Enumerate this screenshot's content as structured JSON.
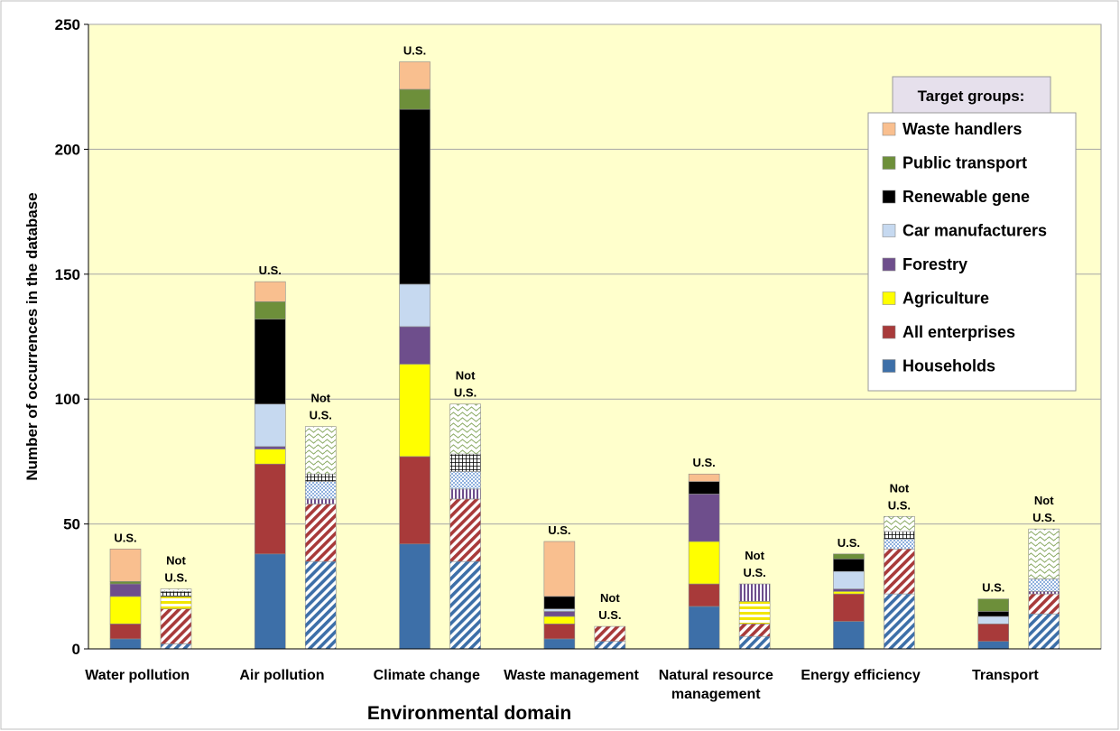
{
  "chart_data": {
    "type": "bar",
    "stacked": true,
    "xlabel": "Environmental domain",
    "ylabel": "Number of occurrences in the database",
    "ylim": [
      0,
      250
    ],
    "yticks": [
      0,
      50,
      100,
      150,
      200,
      250
    ],
    "grid": true,
    "categories": [
      "Water pollution",
      "Air pollution",
      "Climate change",
      "Waste management",
      "Natural resource management",
      "Energy efficiency",
      "Transport"
    ],
    "category_lines": [
      [
        "Water pollution"
      ],
      [
        "Air pollution"
      ],
      [
        "Climate change"
      ],
      [
        "Waste management"
      ],
      [
        "Natural resource",
        "management"
      ],
      [
        "Energy efficiency"
      ],
      [
        "Transport"
      ]
    ],
    "legend": {
      "title": "Target groups:",
      "placement": "top-right",
      "entries": [
        "Waste handlers",
        "Public transport",
        "Renewable gene",
        "Car manufacturers",
        "Forestry",
        "Agriculture",
        "All enterprises",
        "Households"
      ]
    },
    "colors": {
      "Households": "#3d6fa8",
      "All enterprises": "#a83a3a",
      "Agriculture": "#ffff00",
      "Forestry": "#6e4e8c",
      "Car manufacturers": "#c6d9f0",
      "Renewable gene": "#000000",
      "Public transport": "#6d8f3a",
      "Waste handlers": "#f9bf8f",
      "plot_background": "#ffffcc"
    },
    "bar_labels": {
      "us": [
        "U.S."
      ],
      "not_us": [
        "Not",
        "U.S."
      ]
    },
    "series_order": [
      "Households",
      "All enterprises",
      "Agriculture",
      "Forestry",
      "Car manufacturers",
      "Renewable gene",
      "Public transport",
      "Waste handlers",
      "Other"
    ],
    "groups": [
      {
        "category": "Water pollution",
        "us": {
          "Households": 4,
          "All enterprises": 6,
          "Agriculture": 11,
          "Forestry": 5,
          "Car manufacturers": 0,
          "Renewable gene": 0,
          "Public transport": 1,
          "Waste handlers": 13
        },
        "not_us": {
          "Households": 2,
          "All enterprises": 14,
          "Agriculture": 5,
          "Forestry": 0,
          "Car manufacturers": 0,
          "Renewable gene": 2,
          "Public transport": 0,
          "Waste handlers": 0,
          "Other": 1
        }
      },
      {
        "category": "Air pollution",
        "us": {
          "Households": 38,
          "All enterprises": 36,
          "Agriculture": 6,
          "Forestry": 1,
          "Car manufacturers": 17,
          "Renewable gene": 34,
          "Public transport": 7,
          "Waste handlers": 8
        },
        "not_us": {
          "Households": 35,
          "All enterprises": 23,
          "Agriculture": 0,
          "Forestry": 2,
          "Car manufacturers": 7,
          "Renewable gene": 3,
          "Public transport": 0,
          "Waste handlers": 0,
          "Other": 19
        }
      },
      {
        "category": "Climate change",
        "us": {
          "Households": 42,
          "All enterprises": 35,
          "Agriculture": 37,
          "Forestry": 15,
          "Car manufacturers": 17,
          "Renewable gene": 70,
          "Public transport": 8,
          "Waste handlers": 11
        },
        "not_us": {
          "Households": 35,
          "All enterprises": 25,
          "Agriculture": 0,
          "Forestry": 4,
          "Car manufacturers": 7,
          "Renewable gene": 7,
          "Public transport": 0,
          "Waste handlers": 0,
          "Other": 20
        }
      },
      {
        "category": "Waste management",
        "us": {
          "Households": 4,
          "All enterprises": 6,
          "Agriculture": 3,
          "Forestry": 2,
          "Car manufacturers": 1,
          "Renewable gene": 5,
          "Public transport": 0,
          "Waste handlers": 22
        },
        "not_us": {
          "Households": 3,
          "All enterprises": 6,
          "Agriculture": 0,
          "Forestry": 0,
          "Car manufacturers": 0,
          "Renewable gene": 0,
          "Public transport": 0,
          "Waste handlers": 0,
          "Other": 0
        }
      },
      {
        "category": "Natural resource management",
        "us": {
          "Households": 17,
          "All enterprises": 9,
          "Agriculture": 17,
          "Forestry": 19,
          "Car manufacturers": 0,
          "Renewable gene": 5,
          "Public transport": 0,
          "Waste handlers": 3
        },
        "not_us": {
          "Households": 5,
          "All enterprises": 5,
          "Agriculture": 9,
          "Forestry": 7,
          "Car manufacturers": 0,
          "Renewable gene": 0,
          "Public transport": 0,
          "Waste handlers": 0,
          "Other": 0
        }
      },
      {
        "category": "Energy efficiency",
        "us": {
          "Households": 11,
          "All enterprises": 11,
          "Agriculture": 1,
          "Forestry": 1,
          "Car manufacturers": 7,
          "Renewable gene": 5,
          "Public transport": 2,
          "Waste handlers": 0
        },
        "not_us": {
          "Households": 22,
          "All enterprises": 18,
          "Agriculture": 0,
          "Forestry": 0,
          "Car manufacturers": 4,
          "Renewable gene": 3,
          "Public transport": 0,
          "Waste handlers": 0,
          "Other": 6
        }
      },
      {
        "category": "Transport",
        "us": {
          "Households": 3,
          "All enterprises": 7,
          "Agriculture": 0,
          "Forestry": 0,
          "Car manufacturers": 3,
          "Renewable gene": 2,
          "Public transport": 5,
          "Waste handlers": 0
        },
        "not_us": {
          "Households": 14,
          "All enterprises": 8,
          "Agriculture": 0,
          "Forestry": 1,
          "Car manufacturers": 5,
          "Renewable gene": 0,
          "Public transport": 0,
          "Waste handlers": 0,
          "Other": 20
        }
      }
    ]
  }
}
